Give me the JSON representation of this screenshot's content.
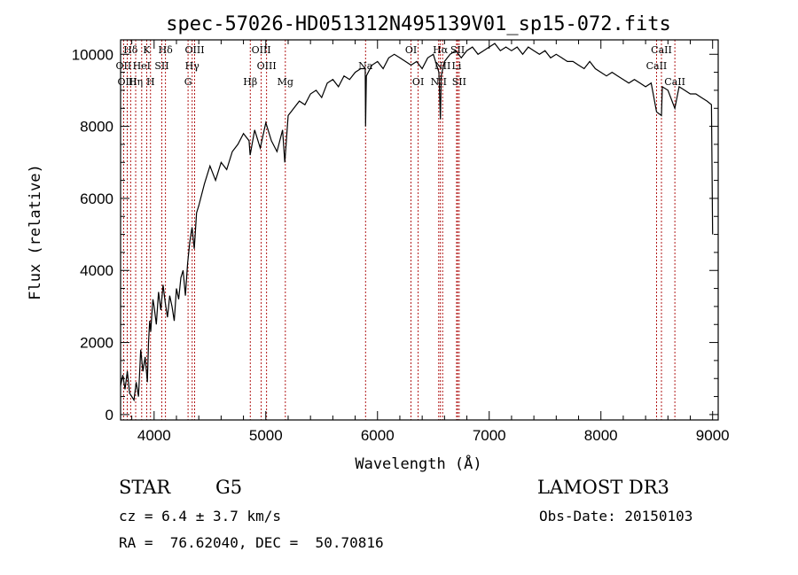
{
  "chart_data": {
    "type": "line",
    "title": "spec-57026-HD051312N495139V01_sp15-072.fits",
    "xlabel": "Wavelength (Å)",
    "ylabel": "Flux (relative)",
    "xlim": [
      3700,
      9050
    ],
    "ylim": [
      -150,
      10400
    ],
    "xticks": [
      4000,
      5000,
      6000,
      7000,
      8000,
      9000
    ],
    "yticks": [
      0,
      2000,
      4000,
      6000,
      8000,
      10000
    ],
    "grid": false,
    "legend": "none",
    "series": [
      {
        "x": [
          3700,
          3720,
          3740,
          3760,
          3780,
          3800,
          3820,
          3840,
          3860,
          3880,
          3900,
          3920,
          3940,
          3950,
          3960,
          3970,
          3980,
          3990,
          4000,
          4020,
          4040,
          4060,
          4080,
          4100,
          4120,
          4140,
          4160,
          4180,
          4200,
          4220,
          4240,
          4260,
          4280,
          4300,
          4320,
          4340,
          4360,
          4380,
          4400,
          4450,
          4500,
          4550,
          4600,
          4650,
          4700,
          4750,
          4800,
          4850,
          4860,
          4900,
          4950,
          5000,
          5050,
          5100,
          5150,
          5170,
          5200,
          5250,
          5300,
          5350,
          5400,
          5450,
          5500,
          5550,
          5600,
          5650,
          5700,
          5750,
          5800,
          5850,
          5890,
          5893,
          5900,
          5950,
          6000,
          6050,
          6100,
          6150,
          6200,
          6250,
          6300,
          6350,
          6400,
          6450,
          6500,
          6550,
          6563,
          6570,
          6600,
          6650,
          6700,
          6750,
          6800,
          6850,
          6900,
          6950,
          7000,
          7050,
          7100,
          7150,
          7200,
          7250,
          7300,
          7350,
          7400,
          7450,
          7500,
          7550,
          7600,
          7650,
          7700,
          7750,
          7800,
          7850,
          7900,
          7950,
          8000,
          8050,
          8100,
          8150,
          8200,
          8250,
          8300,
          8350,
          8400,
          8450,
          8498,
          8542,
          8550,
          8600,
          8662,
          8700,
          8750,
          8800,
          8850,
          8900,
          8950,
          8990,
          9000
        ],
        "y": [
          800,
          1100,
          700,
          1200,
          600,
          500,
          400,
          900,
          500,
          1800,
          1200,
          1600,
          900,
          2000,
          2600,
          2300,
          2800,
          3200,
          3000,
          2500,
          3400,
          2900,
          3600,
          3100,
          2700,
          3300,
          3000,
          2600,
          3500,
          3200,
          3800,
          4000,
          3300,
          4200,
          4800,
          5200,
          4600,
          5600,
          5800,
          6400,
          6900,
          6500,
          7000,
          6800,
          7300,
          7500,
          7800,
          7600,
          7200,
          7900,
          7400,
          8100,
          7600,
          7300,
          7900,
          7000,
          8300,
          8500,
          8700,
          8600,
          8900,
          9000,
          8800,
          9200,
          9300,
          9100,
          9400,
          9300,
          9500,
          9600,
          9600,
          8000,
          9400,
          9700,
          9800,
          9600,
          9900,
          10000,
          9900,
          9800,
          9700,
          9800,
          9600,
          9900,
          10000,
          9500,
          8200,
          9400,
          9800,
          10000,
          10100,
          9900,
          10100,
          10200,
          10000,
          10100,
          10200,
          10300,
          10100,
          10200,
          10100,
          10200,
          10000,
          10200,
          10100,
          10000,
          10100,
          9900,
          10000,
          9900,
          9800,
          9800,
          9700,
          9600,
          9800,
          9600,
          9500,
          9400,
          9500,
          9400,
          9300,
          9200,
          9300,
          9200,
          9100,
          9200,
          8400,
          8300,
          9100,
          9000,
          8500,
          9100,
          9000,
          8900,
          8900,
          8800,
          8700,
          8600,
          5000
        ]
      }
    ],
    "line_markers": [
      {
        "label": "Hδ",
        "x": 3790,
        "row": 0
      },
      {
        "label": "OII",
        "x": 3727,
        "row": 1
      },
      {
        "label": "OIII",
        "x": 3760,
        "row": 2
      },
      {
        "label": "K",
        "x": 3934,
        "row": 0
      },
      {
        "label": "HeI",
        "x": 3889,
        "row": 1
      },
      {
        "label": "Hη",
        "x": 3835,
        "row": 2
      },
      {
        "label": "H",
        "x": 3968,
        "row": 2
      },
      {
        "label": "SII",
        "x": 4069,
        "row": 1
      },
      {
        "label": "Hδ",
        "x": 4102,
        "row": 0
      },
      {
        "label": "OIII",
        "x": 4363,
        "row": 0
      },
      {
        "label": "Hγ",
        "x": 4341,
        "row": 1
      },
      {
        "label": "G",
        "x": 4304,
        "row": 2
      },
      {
        "label": "Hβ",
        "x": 4861,
        "row": 2
      },
      {
        "label": "OIII",
        "x": 4959,
        "row": 0
      },
      {
        "label": "OIII",
        "x": 5007,
        "row": 1
      },
      {
        "label": "Mg",
        "x": 5175,
        "row": 2
      },
      {
        "label": "Na",
        "x": 5893,
        "row": 1
      },
      {
        "label": "OI",
        "x": 6300,
        "row": 0
      },
      {
        "label": "OI",
        "x": 6364,
        "row": 2
      },
      {
        "label": "Hα",
        "x": 6563,
        "row": 0
      },
      {
        "label": "NII",
        "x": 6548,
        "row": 2
      },
      {
        "label": "NII",
        "x": 6583,
        "row": 1
      },
      {
        "label": "SII",
        "x": 6717,
        "row": 0
      },
      {
        "label": "Li",
        "x": 6708,
        "row": 1
      },
      {
        "label": "SII",
        "x": 6731,
        "row": 2
      },
      {
        "label": "CaII",
        "x": 8498,
        "row": 1
      },
      {
        "label": "CaII",
        "x": 8542,
        "row": 0
      },
      {
        "label": "CaII",
        "x": 8662,
        "row": 2
      }
    ],
    "colors": {
      "spectrum": "#000000",
      "marker_line": "#aa0000",
      "axis": "#000000"
    }
  },
  "info": {
    "object_class": "STAR",
    "subclass": "G5",
    "survey": "LAMOST DR3",
    "cz": "cz = 6.4 ± 3.7 km/s",
    "obs_date": "Obs-Date: 20150103",
    "coords": "RA =  76.62040, DEC =  50.70816"
  }
}
